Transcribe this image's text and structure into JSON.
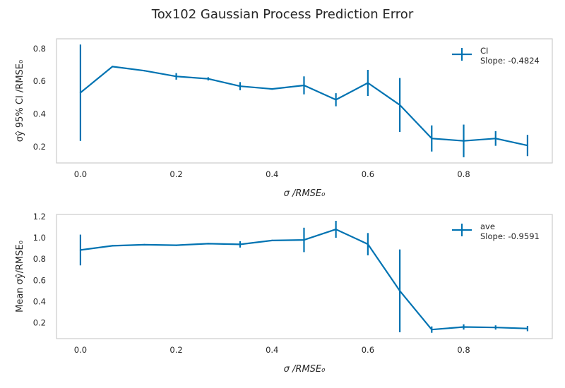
{
  "figure": {
    "title": "Tox102 Gaussian Process Prediction Error"
  },
  "colors": {
    "series": "#0173b2",
    "frame": "#cccccc",
    "text": "#262626"
  },
  "chart_data": [
    {
      "type": "line",
      "xlabel": "σ /RMSE₀",
      "ylabel": "σŷ 95% CI /RMSE₀",
      "xlim": [
        -0.05,
        0.985
      ],
      "ylim": [
        0.1,
        0.86
      ],
      "xticks": [
        0.0,
        0.2,
        0.4,
        0.6,
        0.8
      ],
      "xtick_labels": [
        "0.0",
        "0.2",
        "0.4",
        "0.6",
        "0.8"
      ],
      "yticks": [
        0.2,
        0.4,
        0.6,
        0.8
      ],
      "ytick_labels": [
        "0.2",
        "0.4",
        "0.6",
        "0.8"
      ],
      "grid": false,
      "legend_position": "top-right",
      "legend": {
        "label": "CI",
        "slope_text": "Slope: -0.4824"
      },
      "series": [
        {
          "name": "CI",
          "x": [
            0.0,
            0.0667,
            0.1333,
            0.2,
            0.2667,
            0.3333,
            0.4,
            0.4667,
            0.5333,
            0.6,
            0.6667,
            0.7333,
            0.8,
            0.8667,
            0.9333
          ],
          "y": [
            0.53,
            0.69,
            0.665,
            0.63,
            0.615,
            0.57,
            0.553,
            0.575,
            0.487,
            0.59,
            0.455,
            0.25,
            0.235,
            0.25,
            0.207
          ],
          "yerr": [
            0.295,
            0,
            0,
            0.02,
            0.01,
            0.025,
            0,
            0.055,
            0.04,
            0.08,
            0.165,
            0.08,
            0.1,
            0.045,
            0.065
          ]
        }
      ]
    },
    {
      "type": "line",
      "xlabel": "σ /RMSE₀",
      "ylabel": "Mean σŷ/RMSE₀",
      "xlim": [
        -0.05,
        0.985
      ],
      "ylim": [
        0.05,
        1.22
      ],
      "xticks": [
        0.0,
        0.2,
        0.4,
        0.6,
        0.8
      ],
      "xtick_labels": [
        "0.0",
        "0.2",
        "0.4",
        "0.6",
        "0.8"
      ],
      "yticks": [
        0.2,
        0.4,
        0.6,
        0.8,
        1.0,
        1.2
      ],
      "ytick_labels": [
        "0.2",
        "0.4",
        "0.6",
        "0.8",
        "1.0",
        "1.2"
      ],
      "grid": false,
      "legend_position": "top-right",
      "legend": {
        "label": "ave",
        "slope_text": "Slope: -0.9591"
      },
      "series": [
        {
          "name": "ave",
          "x": [
            0.0,
            0.0667,
            0.1333,
            0.2,
            0.2667,
            0.3333,
            0.4,
            0.4667,
            0.5333,
            0.6,
            0.6667,
            0.7333,
            0.8,
            0.8667,
            0.9333
          ],
          "y": [
            0.885,
            0.925,
            0.935,
            0.93,
            0.945,
            0.938,
            0.975,
            0.98,
            1.08,
            0.94,
            0.5,
            0.135,
            0.16,
            0.155,
            0.145
          ],
          "yerr": [
            0.145,
            0,
            0,
            0,
            0,
            0.03,
            0,
            0.115,
            0.08,
            0.105,
            0.39,
            0.03,
            0.025,
            0.02,
            0.025
          ]
        }
      ]
    }
  ]
}
